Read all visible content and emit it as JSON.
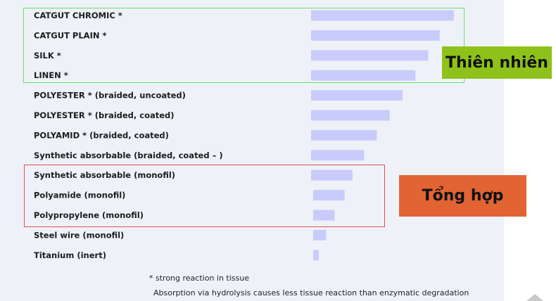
{
  "chart_data": {
    "type": "bar",
    "orientation": "horizontal",
    "categories": [
      "CATGUT CHROMIC *",
      "CATGUT PLAIN *",
      "SILK *",
      "LINEN *",
      "POLYESTER * (braided, uncoated)",
      "POLYESTER * (braided, coated)",
      "POLYAMID * (braided, coated)",
      "Synthetic absorbable (braided, coated – )",
      "Synthetic absorbable (monofil)",
      "Polyamide (monofil)",
      "Polypropylene (monofil)",
      "Steel wire (monofil)",
      "Titanium (inert)"
    ],
    "values": [
      100,
      90,
      82,
      73,
      64,
      55,
      46,
      37,
      29,
      22,
      15,
      9,
      4
    ],
    "xlim": [
      0,
      100
    ],
    "axis_visible": false,
    "grid": false,
    "legend": "none",
    "bar_color": "#c9cbfb",
    "notes": [
      "* strong reaction in tissue",
      "Absorption via hydrolysis causes less tissue reaction than enzymatic degradation"
    ]
  },
  "groups": [
    {
      "label": "Thiên nhiên",
      "color": "#8ec21a",
      "border_color": "#62e062",
      "members": [
        0,
        1,
        2,
        3
      ]
    },
    {
      "label": "Tổng hợp",
      "color": "#e26433",
      "border_color": "#e05050",
      "members": [
        8,
        9,
        10
      ]
    }
  ]
}
